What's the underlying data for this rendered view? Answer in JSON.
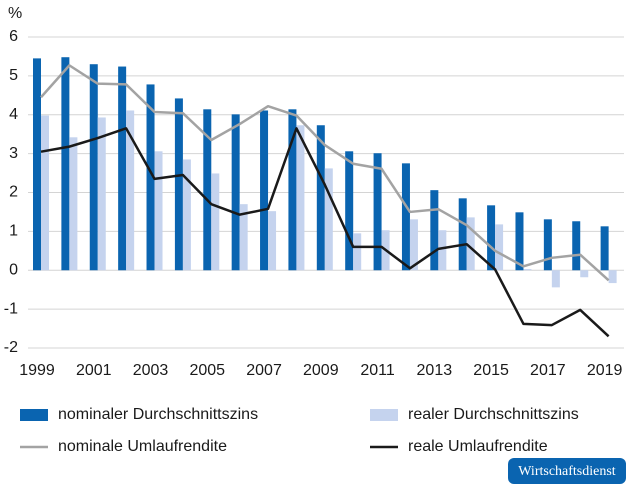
{
  "chart_data": {
    "type": "bar",
    "ylabel": "%",
    "categories": [
      "1999",
      null,
      "2001",
      null,
      "2003",
      null,
      "2005",
      null,
      "2007",
      null,
      "2009",
      null,
      "2011",
      null,
      "2013",
      null,
      "2015",
      null,
      "2017",
      null,
      "2019"
    ],
    "series": [
      {
        "name": "nominaler Durchschnittszins",
        "type": "bar",
        "color": "#0a64b0",
        "values": [
          5.45,
          5.48,
          5.3,
          5.24,
          4.78,
          4.42,
          4.14,
          4.01,
          4.11,
          4.14,
          3.73,
          3.06,
          3.01,
          2.75,
          2.06,
          1.85,
          1.67,
          1.49,
          1.31,
          1.26,
          1.13
        ]
      },
      {
        "name": "realer Durchschnittszins",
        "type": "bar",
        "color": "#c5d3ee",
        "values": [
          3.98,
          3.42,
          3.93,
          4.11,
          3.06,
          2.85,
          2.49,
          1.7,
          1.52,
          3.73,
          2.62,
          0.95,
          1.03,
          1.31,
          1.03,
          1.36,
          1.18,
          0.03,
          -0.44,
          -0.18,
          -0.33
        ]
      },
      {
        "name": "nominale Umlaufrendite",
        "type": "line",
        "color": "#a3a3a3",
        "values": [
          4.45,
          5.27,
          4.8,
          4.78,
          4.07,
          4.04,
          3.35,
          3.76,
          4.22,
          3.98,
          3.22,
          2.74,
          2.61,
          1.5,
          1.57,
          1.16,
          0.5,
          0.1,
          0.32,
          0.4,
          -0.26
        ]
      },
      {
        "name": "reale Umlaufrendite",
        "type": "line",
        "color": "#1a1a1a",
        "values": [
          3.05,
          3.18,
          3.4,
          3.65,
          2.35,
          2.45,
          1.7,
          1.43,
          1.58,
          3.65,
          2.2,
          0.6,
          0.6,
          0.05,
          0.55,
          0.67,
          0.02,
          -1.38,
          -1.41,
          -1.02,
          -1.7
        ]
      }
    ],
    "ylim": [
      -2,
      6
    ],
    "yticks": [
      -2,
      -1,
      0,
      1,
      2,
      3,
      4,
      5,
      6
    ],
    "grid": true,
    "legend": "bottom",
    "logo": "Wirtschaftsdienst"
  }
}
